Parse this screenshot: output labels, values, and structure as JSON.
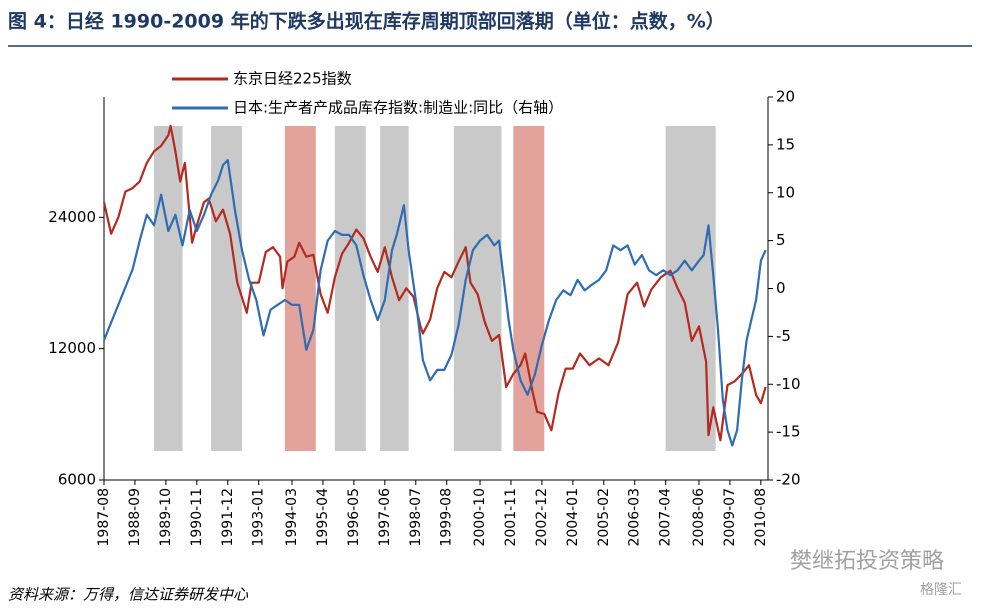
{
  "chart_data": {
    "type": "line",
    "title": "图 4：日经 1990-2009 年的下跌多出现在库存周期顶部回落期（单位：点数，%）",
    "source": "资料来源：万得，信达证券研发中心",
    "watermark": "樊继拓投资策略",
    "watermark2": "格隆汇",
    "xlim": [
      "1987-08",
      "2010-11"
    ],
    "xticks": [
      "1987-08",
      "1988-09",
      "1989-10",
      "1990-11",
      "1991-12",
      "1993-01",
      "1994-03",
      "1995-04",
      "1996-05",
      "1997-06",
      "1998-07",
      "1999-08",
      "2000-10",
      "2001-11",
      "2002-12",
      "2004-01",
      "2005-02",
      "2006-03",
      "2007-04",
      "2008-06",
      "2009-07",
      "2010-08"
    ],
    "ylim": [
      6000,
      45300
    ],
    "log_y": true,
    "yticks": [
      6000,
      12000,
      24000
    ],
    "y2lim": [
      -20,
      20
    ],
    "y2ticks": [
      -20,
      -15,
      -10,
      -5,
      0,
      5,
      10,
      15,
      20
    ],
    "shaded_periods": [
      {
        "start": "1989-05",
        "end": "1990-05",
        "color": "#c9c9c9"
      },
      {
        "start": "1991-05",
        "end": "1992-06",
        "color": "#c9c9c9"
      },
      {
        "start": "1993-12",
        "end": "1995-01",
        "color": "#e2a39d"
      },
      {
        "start": "1995-09",
        "end": "1996-10",
        "color": "#c9c9c9"
      },
      {
        "start": "1997-04",
        "end": "1998-04",
        "color": "#c9c9c9"
      },
      {
        "start": "1999-11",
        "end": "2001-07",
        "color": "#c9c9c9"
      },
      {
        "start": "2001-12",
        "end": "2003-01",
        "color": "#e2a39d"
      },
      {
        "start": "2007-04",
        "end": "2009-01",
        "color": "#c9c9c9"
      }
    ],
    "series": [
      {
        "name": "东京日经225指数",
        "color": "#b42a1e",
        "x": [
          "1987-08",
          "1987-11",
          "1988-02",
          "1988-05",
          "1988-08",
          "1988-11",
          "1989-02",
          "1989-05",
          "1989-08",
          "1989-11",
          "1989-12",
          "1990-02",
          "1990-04",
          "1990-06",
          "1990-09",
          "1990-11",
          "1991-02",
          "1991-04",
          "1991-07",
          "1991-10",
          "1992-01",
          "1992-04",
          "1992-08",
          "1992-10",
          "1993-01",
          "1993-04",
          "1993-07",
          "1993-10",
          "1993-11",
          "1994-01",
          "1994-04",
          "1994-06",
          "1994-09",
          "1994-12",
          "1995-03",
          "1995-06",
          "1995-09",
          "1995-12",
          "1996-03",
          "1996-06",
          "1996-09",
          "1996-12",
          "1997-03",
          "1997-06",
          "1997-09",
          "1997-12",
          "1998-03",
          "1998-06",
          "1998-09",
          "1998-10",
          "1999-01",
          "1999-04",
          "1999-07",
          "1999-10",
          "2000-01",
          "2000-04",
          "2000-06",
          "2000-09",
          "2000-12",
          "2001-03",
          "2001-06",
          "2001-09",
          "2001-12",
          "2002-03",
          "2002-05",
          "2002-08",
          "2002-10",
          "2003-01",
          "2003-04",
          "2003-07",
          "2003-10",
          "2004-01",
          "2004-04",
          "2004-08",
          "2004-12",
          "2005-04",
          "2005-08",
          "2005-12",
          "2006-04",
          "2006-07",
          "2006-10",
          "2007-02",
          "2007-06",
          "2007-09",
          "2007-12",
          "2008-03",
          "2008-06",
          "2008-09",
          "2008-10",
          "2008-12",
          "2009-03",
          "2009-06",
          "2009-09",
          "2009-12",
          "2010-03",
          "2010-06",
          "2010-08",
          "2010-10"
        ],
        "values": [
          26000,
          22000,
          24000,
          27500,
          28000,
          29000,
          32000,
          34000,
          35000,
          37000,
          38900,
          34000,
          29000,
          32000,
          21000,
          23000,
          26000,
          26500,
          23500,
          25000,
          22000,
          17000,
          14500,
          17000,
          17000,
          20000,
          20500,
          19500,
          16500,
          19000,
          19500,
          21000,
          19500,
          19700,
          16000,
          14500,
          17500,
          19800,
          21000,
          22500,
          21500,
          19500,
          18000,
          20500,
          17500,
          15500,
          16500,
          15800,
          13500,
          13000,
          14000,
          16500,
          18000,
          17500,
          19000,
          20500,
          17000,
          16000,
          13800,
          12500,
          12900,
          9800,
          10500,
          11000,
          11700,
          9600,
          8600,
          8500,
          7800,
          9500,
          10800,
          10800,
          11700,
          11000,
          11400,
          11000,
          12400,
          16000,
          17000,
          15000,
          16400,
          17500,
          18100,
          16500,
          15300,
          12500,
          13500,
          11200,
          7600,
          8800,
          7400,
          9900,
          10100,
          10500,
          11000,
          9400,
          9000,
          9800
        ]
      },
      {
        "name": "日本:生产者产成品库存指数:制造业:同比（右轴）",
        "color": "#2e6db4",
        "axis": "y2",
        "x": [
          "1987-08",
          "1988-02",
          "1988-08",
          "1988-11",
          "1989-02",
          "1989-05",
          "1989-08",
          "1989-11",
          "1990-02",
          "1990-05",
          "1990-08",
          "1990-11",
          "1991-02",
          "1991-05",
          "1991-08",
          "1991-10",
          "1991-12",
          "1992-03",
          "1992-06",
          "1992-09",
          "1992-12",
          "1993-03",
          "1993-06",
          "1993-09",
          "1993-12",
          "1994-03",
          "1994-06",
          "1994-09",
          "1994-12",
          "1995-03",
          "1995-06",
          "1995-09",
          "1995-12",
          "1996-03",
          "1996-06",
          "1996-09",
          "1996-12",
          "1997-03",
          "1997-06",
          "1997-09",
          "1997-11",
          "1998-02",
          "1998-04",
          "1998-07",
          "1998-10",
          "1999-01",
          "1999-04",
          "1999-07",
          "1999-10",
          "2000-01",
          "2000-04",
          "2000-07",
          "2000-10",
          "2001-01",
          "2001-04",
          "2001-06",
          "2001-08",
          "2001-10",
          "2001-12",
          "2002-03",
          "2002-06",
          "2002-09",
          "2002-12",
          "2003-03",
          "2003-06",
          "2003-09",
          "2003-12",
          "2004-03",
          "2004-06",
          "2004-09",
          "2004-12",
          "2005-03",
          "2005-06",
          "2005-09",
          "2005-12",
          "2006-03",
          "2006-06",
          "2006-09",
          "2006-12",
          "2007-03",
          "2007-06",
          "2007-09",
          "2007-12",
          "2008-03",
          "2008-06",
          "2008-08",
          "2008-10",
          "2008-12",
          "2009-02",
          "2009-04",
          "2009-06",
          "2009-08",
          "2009-10",
          "2009-12",
          "2010-02",
          "2010-04",
          "2010-06",
          "2010-08",
          "2010-10"
        ],
        "values": [
          -5.4,
          -1.7,
          2,
          5,
          7.7,
          6.6,
          9.8,
          6,
          7.7,
          4.5,
          8.2,
          6,
          7.7,
          9.8,
          11.3,
          12.9,
          13.4,
          8.2,
          4,
          0.9,
          -1.2,
          -4.9,
          -2.2,
          -1.7,
          -1.2,
          -1.7,
          -1.7,
          -6.4,
          -4.3,
          1.9,
          5,
          6,
          5.6,
          5.6,
          4.5,
          1.4,
          -1.2,
          -3.3,
          -1.2,
          4,
          5.6,
          8.7,
          4,
          -1.2,
          -7.5,
          -9.6,
          -8.5,
          -8.5,
          -6.9,
          -3.8,
          0.9,
          4,
          5,
          5.6,
          4.5,
          5,
          0.9,
          -3.3,
          -6.4,
          -9.6,
          -11.1,
          -9,
          -5.9,
          -3.3,
          -1.2,
          -0.2,
          -0.7,
          0.9,
          -0.2,
          0.4,
          0.9,
          1.9,
          4.5,
          4,
          4.5,
          2.5,
          3.5,
          1.9,
          1.4,
          1.9,
          1.4,
          1.9,
          2.9,
          1.9,
          2.9,
          3.5,
          6.6,
          1.4,
          -4.3,
          -11.6,
          -14.8,
          -16.4,
          -14.8,
          -9.6,
          -5.4,
          -3.3,
          -1.2,
          2.9,
          4
        ]
      }
    ]
  }
}
